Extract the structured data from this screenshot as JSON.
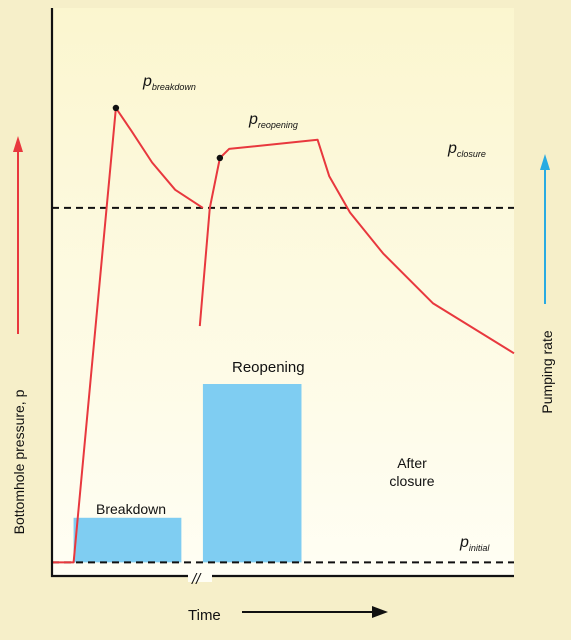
{
  "chart_data": {
    "type": "line",
    "title": "",
    "xlabel": "Time",
    "ylabel_left": "Bottomhole pressure, p",
    "ylabel_right": "Pumping rate",
    "axis_break_mark": "//",
    "grid": false,
    "colors": {
      "pressure_line": "#e8383e",
      "pumping_rate_bars": "#7fcdf2",
      "left_axis_arrow": "#e8383e",
      "right_axis_arrow": "#29abe2",
      "background": "#fbf7d9"
    },
    "pressure_series": {
      "segment_before_break": [
        [
          0,
          0
        ],
        [
          2.8,
          0
        ],
        [
          8.3,
          100
        ],
        [
          10.3,
          95
        ],
        [
          13.0,
          88
        ],
        [
          16.0,
          82
        ],
        [
          19.6,
          78
        ]
      ],
      "segment_after_break": [
        [
          19.2,
          52
        ],
        [
          20.5,
          78
        ],
        [
          21.8,
          89
        ],
        [
          23.0,
          91
        ],
        [
          34.5,
          93
        ],
        [
          36.0,
          85
        ],
        [
          38.7,
          77
        ],
        [
          43.0,
          68
        ],
        [
          49.5,
          57
        ],
        [
          60.0,
          46
        ]
      ]
    },
    "pumping_rate_bars": [
      {
        "label": "Breakdown",
        "x_start": 2.8,
        "x_end": 16.8,
        "rate": 0.25
      },
      {
        "label": "Reopening",
        "x_start": 19.6,
        "x_end": 32.4,
        "rate": 1.0
      },
      {
        "label": "After closure",
        "x_start": 32.4,
        "x_end": 60.0,
        "rate": 0
      }
    ],
    "reference_lines": [
      {
        "label": "closure",
        "p_value": 78
      },
      {
        "label": "initial",
        "p_value": 0
      }
    ],
    "point_annotations": [
      {
        "label": "breakdown",
        "x": 8.3,
        "p_value": 100
      },
      {
        "label": "reopening",
        "x": 21.8,
        "p_value": 89
      }
    ],
    "ylim_pressure": [
      -3,
      122
    ],
    "xlim": [
      0,
      60
    ]
  }
}
